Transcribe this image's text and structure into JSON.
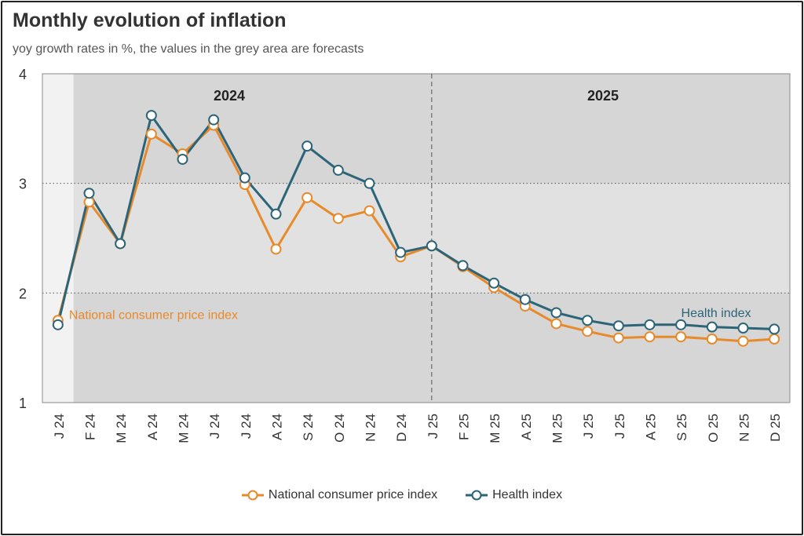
{
  "chart_data": {
    "type": "line",
    "title": "Monthly evolution of inflation",
    "subtitle": "yoy growth rates in %, the values in the grey area are forecasts",
    "categories": [
      "J 24",
      "F 24",
      "M 24",
      "A 24",
      "M 24",
      "J 24",
      "J 24",
      "A 24",
      "S 24",
      "O 24",
      "N 24",
      "D 24",
      "J 25",
      "F 25",
      "M 25",
      "A 25",
      "M 25",
      "J 25",
      "J 25",
      "A 25",
      "S 25",
      "O 25",
      "N 25",
      "D 25"
    ],
    "yticks": [
      "1",
      "2",
      "3",
      "4"
    ],
    "ylim": [
      1,
      4
    ],
    "grid": "horizontal dotted",
    "forecast_start_index": 1,
    "year_labels": [
      {
        "label": "2024",
        "from_index": 0,
        "to_index": 11
      },
      {
        "label": "2025",
        "from_index": 12,
        "to_index": 23
      }
    ],
    "year_divider_after_index": 12,
    "series": [
      {
        "name": "National consumer price index",
        "color": "#e8892a",
        "values": [
          1.75,
          2.83,
          2.45,
          3.45,
          3.27,
          3.53,
          2.99,
          2.4,
          2.87,
          2.68,
          2.75,
          2.33,
          2.43,
          2.24,
          2.05,
          1.88,
          1.72,
          1.65,
          1.59,
          1.6,
          1.6,
          1.58,
          1.56,
          1.58
        ],
        "inline_label": "National consumer price index",
        "inline_label_at_index": 0
      },
      {
        "name": "Health index",
        "color": "#2c6478",
        "values": [
          1.71,
          2.91,
          2.45,
          3.62,
          3.22,
          3.58,
          3.05,
          2.72,
          3.34,
          3.12,
          3.0,
          2.37,
          2.43,
          2.25,
          2.09,
          1.94,
          1.82,
          1.75,
          1.7,
          1.71,
          1.71,
          1.69,
          1.68,
          1.67
        ],
        "inline_label": "Health index",
        "inline_label_at_index": 22
      }
    ],
    "legend": [
      {
        "name": "National consumer price index",
        "color": "#e8892a"
      },
      {
        "name": "Health index",
        "color": "#2c6478"
      }
    ],
    "legend_position": "bottom-center"
  }
}
